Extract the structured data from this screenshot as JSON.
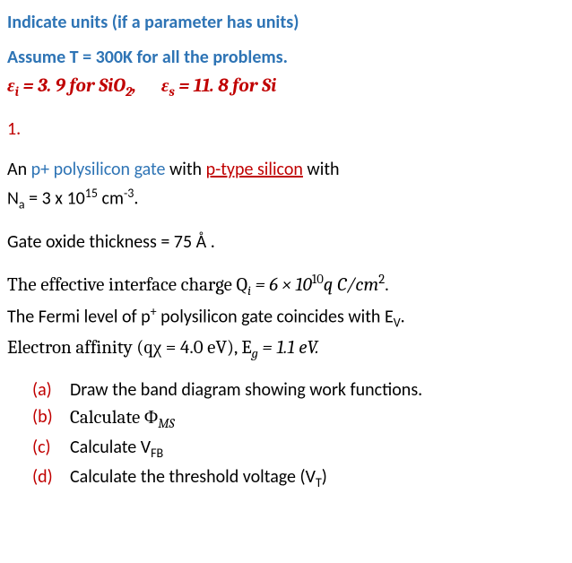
{
  "header": {
    "line1": "Indicate units (if a parameter has units)",
    "line2": "Assume T = 300K for all the problems.",
    "eps_i_label": "ε",
    "eps_i_sub": "i",
    "eps_i_val": " = 3. 9 for SiO",
    "eps_i_sub2": "2",
    "eps_i_comma": ",",
    "eps_s_label": "ε",
    "eps_s_sub": "s",
    "eps_s_val": " = 11. 8 for Si"
  },
  "problem": {
    "number": "1.",
    "intro1": "An ",
    "poly": "p+ polysilicon gate",
    "intro2": " with ",
    "ptype": "p-type silicon",
    "intro3": " with",
    "na_text1": "N",
    "na_sub": "a",
    "na_text2": " = 3 x 10",
    "na_sup": "15",
    "na_text3": " cm",
    "na_sup2": "-3",
    "na_text4": ".",
    "oxide": "Gate oxide thickness = 75 Å .",
    "qi1": "The effective interface charge  Q",
    "qi_sub": "i",
    "qi2": " = 6 × 10",
    "qi_sup": "10",
    "qi3": "q  C/cm",
    "qi_sup2": "2",
    "qi4": ".",
    "fermi1": "The Fermi level of p",
    "fermi_sup": "+",
    "fermi2": " polysilicon gate coincides with E",
    "fermi_sub": "V",
    "fermi3": ".",
    "aff1": "Electron affinity (qχ = 4.0 eV),  E",
    "aff_sub": "g",
    "aff2": " = 1.1 eV."
  },
  "parts": {
    "a_label": "(a)",
    "a_text": "Draw the band diagram showing work functions.",
    "b_label": "(b)",
    "b_text1": "Calculate  Φ",
    "b_sub": "MS",
    "c_label": "(c)",
    "c_text1": "Calculate V",
    "c_sub": "FB",
    "d_label": "(d)",
    "d_text1": "Calculate the threshold voltage (V",
    "d_sub": "T",
    "d_text2": ")"
  }
}
